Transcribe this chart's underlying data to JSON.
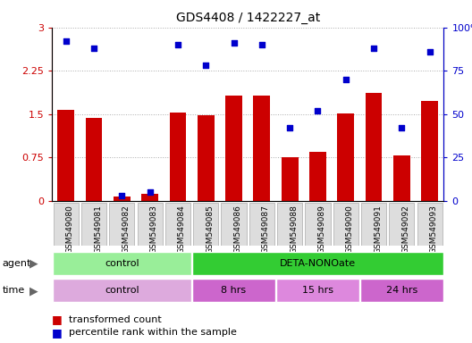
{
  "title": "GDS4408 / 1422227_at",
  "samples": [
    "GSM549080",
    "GSM549081",
    "GSM549082",
    "GSM549083",
    "GSM549084",
    "GSM549085",
    "GSM549086",
    "GSM549087",
    "GSM549088",
    "GSM549089",
    "GSM549090",
    "GSM549091",
    "GSM549092",
    "GSM549093"
  ],
  "bar_values": [
    1.57,
    1.44,
    0.07,
    0.12,
    1.53,
    1.48,
    1.82,
    1.82,
    0.76,
    0.85,
    1.51,
    1.87,
    0.79,
    1.72
  ],
  "dot_values": [
    92,
    88,
    3,
    5,
    90,
    78,
    91,
    90,
    42,
    52,
    70,
    88,
    42,
    86
  ],
  "bar_color": "#cc0000",
  "dot_color": "#0000cc",
  "ylim_left": [
    0,
    3
  ],
  "ylim_right": [
    0,
    100
  ],
  "yticks_left": [
    0,
    0.75,
    1.5,
    2.25,
    3
  ],
  "yticks_right": [
    0,
    25,
    50,
    75,
    100
  ],
  "ytick_labels_right": [
    "0",
    "25",
    "50",
    "75",
    "100%"
  ],
  "agent_groups": [
    {
      "label": "control",
      "start": 0,
      "end": 5,
      "color": "#99ee99"
    },
    {
      "label": "DETA-NONOate",
      "start": 5,
      "end": 14,
      "color": "#33cc33"
    }
  ],
  "time_groups": [
    {
      "label": "control",
      "start": 0,
      "end": 5,
      "color": "#ddaadd"
    },
    {
      "label": "8 hrs",
      "start": 5,
      "end": 8,
      "color": "#cc66cc"
    },
    {
      "label": "15 hrs",
      "start": 8,
      "end": 11,
      "color": "#dd88dd"
    },
    {
      "label": "24 hrs",
      "start": 11,
      "end": 14,
      "color": "#cc66cc"
    }
  ],
  "legend_bar_label": "transformed count",
  "legend_dot_label": "percentile rank within the sample",
  "agent_label": "agent",
  "time_label": "time",
  "background_color": "#ffffff"
}
